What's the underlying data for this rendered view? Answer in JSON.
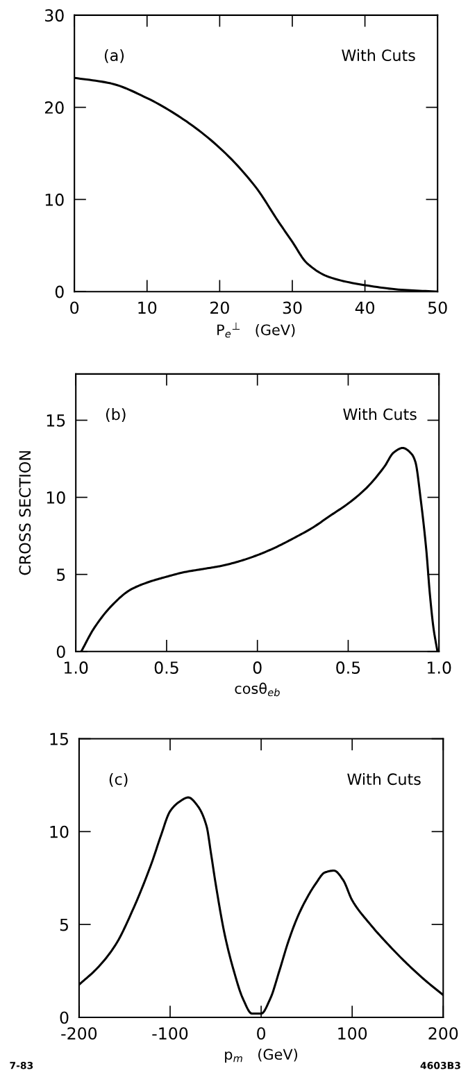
{
  "chart_data": [
    {
      "type": "line",
      "xlabel": "P$_{e}$$^{⊥}$   (GeV)",
      "annotations": [
        "(a)",
        "With Cuts"
      ],
      "xlim": [
        0,
        50
      ],
      "ylim": [
        0,
        30
      ],
      "xticks": [
        0,
        10,
        20,
        30,
        40,
        50
      ],
      "yticks": [
        0,
        10,
        20,
        30
      ],
      "x": [
        0,
        5,
        10,
        15,
        20,
        25,
        28,
        30,
        32,
        35,
        40,
        45,
        50
      ],
      "series": [
        {
          "color": "#000000",
          "values": [
            23.2,
            22.6,
            21.0,
            18.7,
            15.6,
            11.3,
            7.7,
            5.4,
            3.1,
            1.6,
            0.7,
            0.2,
            0
          ]
        }
      ]
    },
    {
      "type": "line",
      "xlabel": "cosθ$_{eb}$",
      "ylabel": "CROSS SECTION",
      "annotations": [
        "(b)",
        "With Cuts"
      ],
      "xlim": [
        -1,
        1
      ],
      "ylim": [
        0,
        18
      ],
      "xticks": [
        {
          "value": -1,
          "label": "1.0"
        },
        {
          "value": -0.5,
          "label": "0.5"
        },
        0,
        0.5,
        {
          "value": 1,
          "label": "1.0"
        }
      ],
      "yticks": [
        0,
        5,
        10,
        15
      ],
      "x": [
        -0.97,
        -0.9,
        -0.8,
        -0.7,
        -0.6,
        -0.5,
        -0.4,
        -0.3,
        -0.2,
        -0.1,
        0,
        0.1,
        0.2,
        0.3,
        0.4,
        0.5,
        0.6,
        0.7,
        0.75,
        0.8,
        0.85,
        0.87,
        0.9,
        0.93,
        0.95,
        0.97,
        0.99
      ],
      "series": [
        {
          "color": "#000000",
          "values": [
            0,
            1.5,
            3.0,
            4.0,
            4.5,
            4.85,
            5.15,
            5.35,
            5.55,
            5.85,
            6.25,
            6.75,
            7.35,
            8.0,
            8.8,
            9.6,
            10.6,
            12.0,
            12.9,
            13.2,
            12.8,
            12.3,
            9.8,
            6.6,
            3.7,
            1.5,
            0.1
          ]
        }
      ]
    },
    {
      "type": "line",
      "xlabel": "p$_{m}$   (GeV)",
      "annotations": [
        "(c)",
        "With Cuts",
        "7-83",
        "4603B3"
      ],
      "xlim": [
        -200,
        200
      ],
      "ylim": [
        0,
        15
      ],
      "xticks": [
        -200,
        -100,
        0,
        100,
        200
      ],
      "yticks": [
        0,
        5,
        10,
        15
      ],
      "x": [
        -200,
        -180,
        -160,
        -140,
        -120,
        -110,
        -100,
        -90,
        -80,
        -70,
        -60,
        -55,
        -50,
        -40,
        -30,
        -20,
        -10,
        0,
        10,
        20,
        30,
        40,
        50,
        60,
        70,
        80,
        90,
        100,
        120,
        140,
        160,
        180,
        200
      ],
      "series": [
        {
          "color": "#000000",
          "values": [
            1.76,
            2.65,
            3.9,
            5.9,
            8.35,
            9.8,
            11.1,
            11.6,
            11.84,
            11.4,
            10.3,
            8.8,
            7.2,
            4.45,
            2.5,
            1.0,
            0.2,
            0.2,
            1.0,
            2.5,
            4.1,
            5.4,
            6.4,
            7.2,
            7.8,
            7.9,
            7.4,
            6.3,
            5.0,
            3.9,
            2.9,
            2.0,
            1.2
          ]
        }
      ]
    }
  ]
}
